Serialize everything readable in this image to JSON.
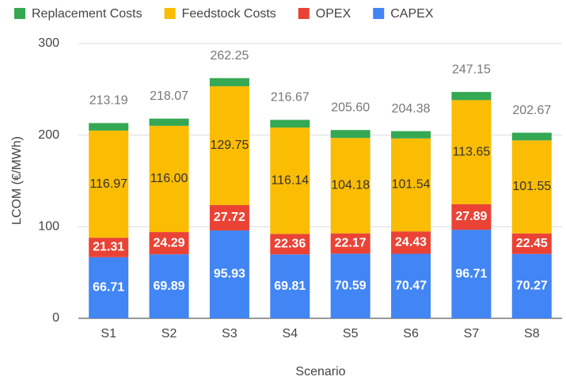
{
  "chart_data": {
    "type": "stacked_bar",
    "x_label": "Scenario",
    "y_label": "LCOM (€/MWh)",
    "categories": [
      "S1",
      "S2",
      "S3",
      "S4",
      "S5",
      "S6",
      "S7",
      "S8"
    ],
    "series": [
      {
        "name": "CAPEX",
        "color": "#4285f4",
        "values": [
          66.71,
          69.89,
          95.93,
          69.81,
          70.59,
          70.47,
          96.71,
          70.27
        ],
        "value_labels": [
          "66.71",
          "69.89",
          "95.93",
          "69.81",
          "70.59",
          "70.47",
          "96.71",
          "70.27"
        ]
      },
      {
        "name": "OPEX",
        "color": "#ea4335",
        "values": [
          21.31,
          24.29,
          27.72,
          22.36,
          22.17,
          24.43,
          27.89,
          22.45
        ],
        "value_labels": [
          "21.31",
          "24.29",
          "27.72",
          "22.36",
          "22.17",
          "24.43",
          "27.89",
          "22.45"
        ]
      },
      {
        "name": "Feedstock Costs",
        "color": "#fbbc04",
        "values": [
          116.97,
          116.0,
          129.75,
          116.14,
          104.18,
          101.54,
          113.65,
          101.55
        ],
        "value_labels": [
          "116.97",
          "116.00",
          "129.75",
          "116.14",
          "104.18",
          "101.54",
          "113.65",
          "101.55"
        ]
      },
      {
        "name": "Replacement Costs",
        "color": "#34a853",
        "values": [
          8.2,
          7.89,
          8.85,
          8.36,
          8.66,
          7.94,
          8.9,
          8.4
        ]
      }
    ],
    "totals": [
      213.19,
      218.07,
      262.25,
      216.67,
      205.6,
      204.38,
      247.15,
      202.67
    ],
    "total_labels": [
      "213.19",
      "218.07",
      "262.25",
      "216.67",
      "205.60",
      "204.38",
      "247.15",
      "202.67"
    ],
    "ylim": [
      0,
      300
    ],
    "yticks": [
      0,
      100,
      200,
      300
    ],
    "grid": true,
    "legend": "top"
  }
}
